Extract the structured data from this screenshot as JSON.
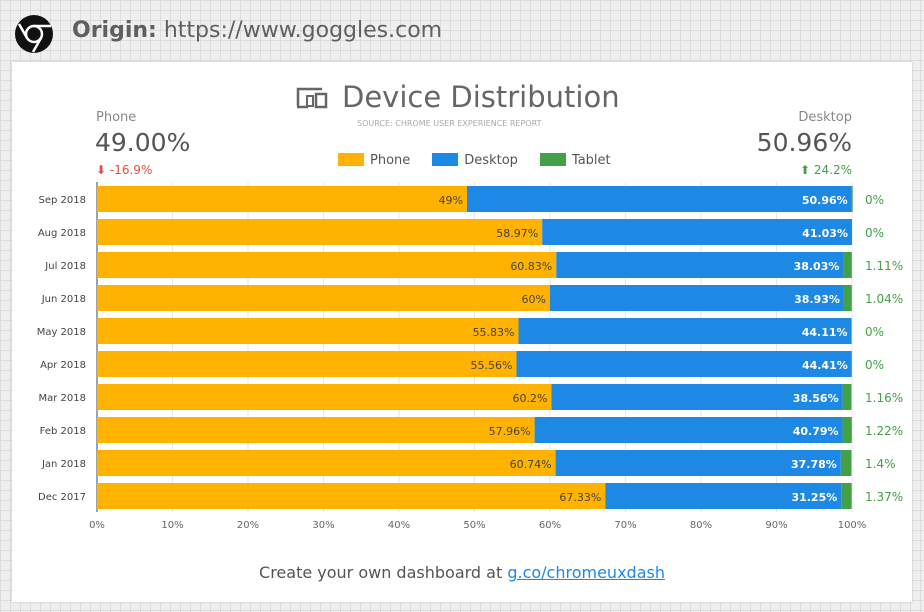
{
  "header": {
    "origin_label": "Origin:",
    "origin_url": "https://www.goggles.com",
    "logo_icon": "chrome-icon"
  },
  "title": "Device Distribution",
  "title_icon": "devices-icon",
  "source": "SOURCE: CHROME USER EXPERIENCE REPORT",
  "kpis": {
    "left": {
      "label": "Phone",
      "value": "49.00%",
      "change": "-16.9%",
      "direction": "down"
    },
    "right": {
      "label": "Desktop",
      "value": "50.96%",
      "change": "24.2%",
      "direction": "up"
    }
  },
  "colors": {
    "Phone": "#ffb300",
    "Desktop": "#1e88e5",
    "Tablet": "#43a047"
  },
  "footer": {
    "text": "Create your own dashboard at ",
    "link": "g.co/chromeuxdash"
  },
  "chart_data": {
    "type": "bar",
    "orientation": "horizontal",
    "stacked": true,
    "categories": [
      "Sep 2018",
      "Aug 2018",
      "Jul 2018",
      "Jun 2018",
      "May 2018",
      "Apr 2018",
      "Mar 2018",
      "Feb 2018",
      "Jan 2018",
      "Dec 2017"
    ],
    "series": [
      {
        "name": "Phone",
        "values": [
          49,
          58.97,
          60.83,
          60,
          55.83,
          55.56,
          60.2,
          57.96,
          60.74,
          67.33
        ],
        "labels": [
          "49%",
          "58.97%",
          "60.83%",
          "60%",
          "55.83%",
          "55.56%",
          "60.2%",
          "57.96%",
          "60.74%",
          "67.33%"
        ]
      },
      {
        "name": "Desktop",
        "values": [
          50.96,
          41.03,
          38.03,
          38.93,
          44.11,
          44.41,
          38.56,
          40.79,
          37.78,
          31.25
        ],
        "labels": [
          "50.96%",
          "41.03%",
          "38.03%",
          "38.93%",
          "44.11%",
          "44.41%",
          "38.56%",
          "40.79%",
          "37.78%",
          "31.25%"
        ]
      },
      {
        "name": "Tablet",
        "values": [
          0,
          0,
          1.11,
          1.04,
          0,
          0,
          1.16,
          1.22,
          1.4,
          1.37
        ],
        "labels": [
          "0%",
          "0%",
          "1.11%",
          "1.04%",
          "0%",
          "0%",
          "1.16%",
          "1.22%",
          "1.4%",
          "1.37%"
        ]
      }
    ],
    "xlim": [
      0,
      100
    ],
    "xticks": [
      "0%",
      "10%",
      "20%",
      "30%",
      "40%",
      "50%",
      "60%",
      "70%",
      "80%",
      "90%",
      "100%"
    ],
    "grid": true,
    "legend": "top"
  }
}
